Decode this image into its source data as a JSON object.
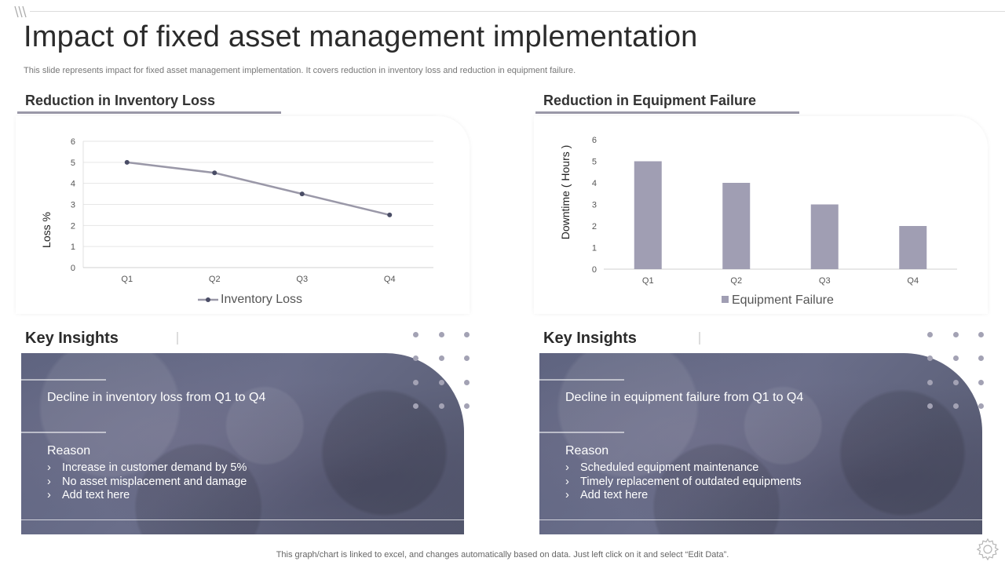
{
  "title": "Impact of fixed asset management implementation",
  "subtitle": "This slide represents impact for fixed asset management implementation. It covers reduction in inventory loss and reduction in equipment failure.",
  "left_section": {
    "heading": "Reduction in Inventory Loss"
  },
  "right_section": {
    "heading": "Reduction in Equipment Failure"
  },
  "chart_data": [
    {
      "type": "line",
      "categories": [
        "Q1",
        "Q2",
        "Q3",
        "Q4"
      ],
      "series": [
        {
          "name": "Inventory Loss",
          "values": [
            5,
            4.5,
            3.5,
            2.5
          ]
        }
      ],
      "ylabel": "Loss %",
      "ylim": [
        0,
        6
      ],
      "yticks": [
        0,
        1,
        2,
        3,
        4,
        5,
        6
      ],
      "grid": true,
      "legend": "bottom",
      "color": "#9a98a8"
    },
    {
      "type": "bar",
      "categories": [
        "Q1",
        "Q2",
        "Q3",
        "Q4"
      ],
      "series": [
        {
          "name": "Equipment Failure",
          "values": [
            5,
            4,
            3,
            2
          ]
        }
      ],
      "ylabel": "Downtime ( Hours )",
      "ylim": [
        0,
        6
      ],
      "yticks": [
        0,
        1,
        2,
        3,
        4,
        5,
        6
      ],
      "grid": false,
      "legend": "bottom",
      "color": "#a09eb3"
    }
  ],
  "left_insights": {
    "heading": "Key Insights",
    "headline": "Decline in inventory  loss from Q1 to Q4",
    "reason_label": "Reason",
    "reasons": [
      "Increase in customer demand by 5%",
      "No asset misplacement and damage",
      "Add text here"
    ]
  },
  "right_insights": {
    "heading": "Key Insights",
    "headline": "Decline in equipment failure from Q1 to Q4",
    "reason_label": "Reason",
    "reasons": [
      "Scheduled equipment maintenance",
      "Timely replacement of outdated equipments",
      "Add text here"
    ]
  },
  "footer_note": "This graph/chart is linked to excel,  and changes automatically based on data. Just left click on it and select “Edit Data”.",
  "icons": {
    "logo": "logo-icon",
    "settings": "gear-icon"
  },
  "colors": {
    "accent": "#9a98a8",
    "card": "#62667f"
  }
}
